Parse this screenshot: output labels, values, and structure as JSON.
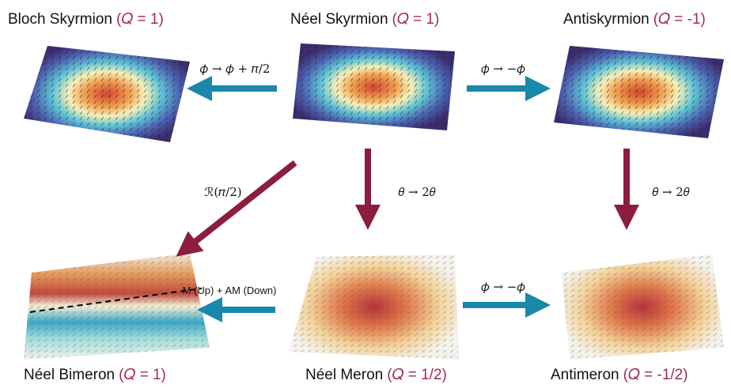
{
  "nodes": [
    {
      "name": "Bloch Skyrmion",
      "charge": "(𝑄 = 1)"
    },
    {
      "name": "Néel Skyrmion",
      "charge": "(𝑄 = 1)"
    },
    {
      "name": "Antiskyrmion",
      "charge": "(𝑄 = -1)"
    },
    {
      "name": "Néel Bimeron",
      "charge": "(𝑄 = 1)"
    },
    {
      "name": "Néel Meron",
      "charge": "(𝑄 = 1/2)"
    },
    {
      "name": "Antimeron",
      "charge": "(𝑄 = -1/2)"
    }
  ],
  "arrows": [
    {
      "label": "𝜙 → 𝜙 + 𝜋/2"
    },
    {
      "label": "𝜙 → −𝜙"
    },
    {
      "label": "𝜃 → 2𝜃"
    },
    {
      "label": "𝜃 → 2𝜃"
    },
    {
      "label": "ℛ(𝜋/2)"
    },
    {
      "label": "M (Up) + AM (Down)"
    },
    {
      "label": "𝜙 → −𝜙"
    }
  ]
}
